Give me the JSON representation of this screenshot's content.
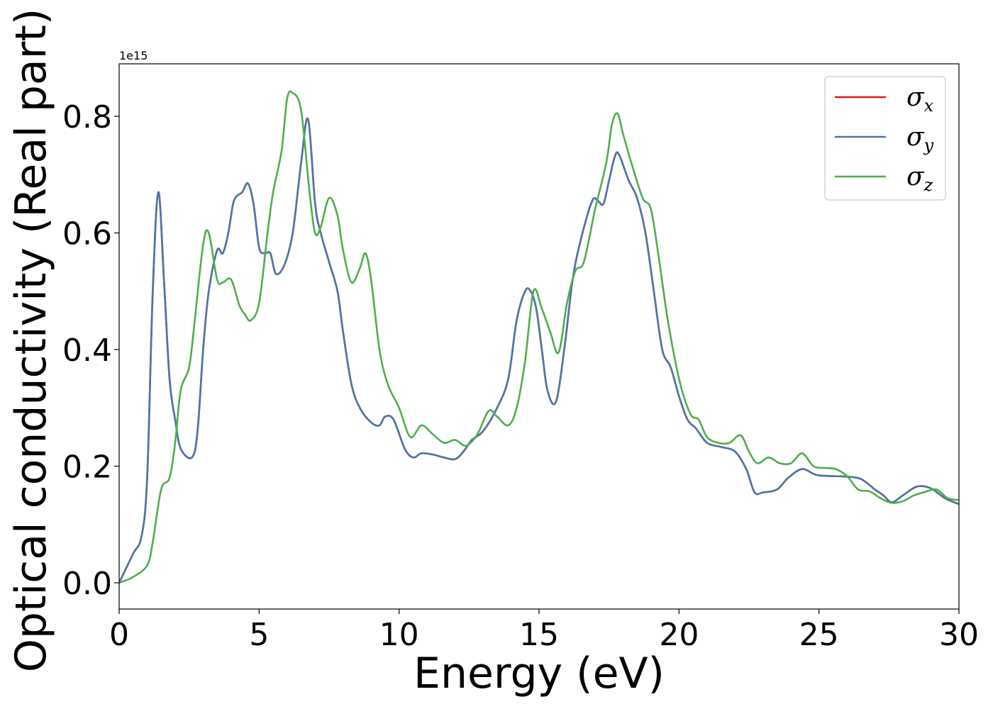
{
  "chart_data": {
    "type": "line",
    "xlabel": "Energy (eV)",
    "ylabel": "Optical conductivity (Real part)",
    "y_offset_label": "1e15",
    "xlim": [
      0,
      30
    ],
    "ylim": [
      -0.045,
      0.89
    ],
    "xticks": [
      0,
      5,
      10,
      15,
      20,
      25,
      30
    ],
    "yticks": [
      0.0,
      0.2,
      0.4,
      0.6,
      0.8
    ],
    "xtick_labels": [
      "0",
      "5",
      "10",
      "15",
      "20",
      "25",
      "30"
    ],
    "ytick_labels": [
      "0.0",
      "0.2",
      "0.4",
      "0.6",
      "0.8"
    ],
    "legend_position": "top-right",
    "grid": false,
    "series": [
      {
        "name": "σx",
        "symbol": "σ",
        "subscript": "x",
        "color": "#e41a1c",
        "x": [
          0,
          0.5,
          0.8,
          1.0,
          1.2,
          1.4,
          1.6,
          1.8,
          2.0,
          2.2,
          2.6,
          2.8,
          3.0,
          3.2,
          3.5,
          3.7,
          3.9,
          4.1,
          4.4,
          4.6,
          4.8,
          5.0,
          5.2,
          5.4,
          5.6,
          5.9,
          6.2,
          6.5,
          6.75,
          7.0,
          7.2,
          7.5,
          7.8,
          8.0,
          8.3,
          8.6,
          9.0,
          9.3,
          9.5,
          9.8,
          10.2,
          10.5,
          10.8,
          11.2,
          11.6,
          12.0,
          12.3,
          12.6,
          13.0,
          13.5,
          13.9,
          14.2,
          14.5,
          14.7,
          14.9,
          15.1,
          15.3,
          15.6,
          15.9,
          16.2,
          16.5,
          16.9,
          17.1,
          17.3,
          17.5,
          17.7,
          17.85,
          18.2,
          18.5,
          18.8,
          19.1,
          19.4,
          19.7,
          20.0,
          20.3,
          20.6,
          21.0,
          21.5,
          22.0,
          22.4,
          22.7,
          23.0,
          23.5,
          23.9,
          24.4,
          24.9,
          25.5,
          26.0,
          26.5,
          27.0,
          27.3,
          27.6,
          28.0,
          28.5,
          29.0,
          29.5,
          30.0
        ],
        "y": [
          0.0,
          0.05,
          0.08,
          0.18,
          0.5,
          0.67,
          0.52,
          0.35,
          0.28,
          0.23,
          0.215,
          0.26,
          0.4,
          0.5,
          0.57,
          0.565,
          0.6,
          0.655,
          0.67,
          0.685,
          0.65,
          0.575,
          0.565,
          0.565,
          0.53,
          0.545,
          0.6,
          0.72,
          0.795,
          0.65,
          0.6,
          0.55,
          0.5,
          0.43,
          0.34,
          0.3,
          0.275,
          0.27,
          0.285,
          0.28,
          0.23,
          0.215,
          0.222,
          0.22,
          0.215,
          0.212,
          0.225,
          0.245,
          0.26,
          0.3,
          0.35,
          0.45,
          0.5,
          0.5,
          0.47,
          0.4,
          0.33,
          0.31,
          0.4,
          0.52,
          0.59,
          0.655,
          0.655,
          0.65,
          0.69,
          0.73,
          0.735,
          0.69,
          0.66,
          0.6,
          0.5,
          0.4,
          0.37,
          0.32,
          0.28,
          0.265,
          0.24,
          0.233,
          0.225,
          0.195,
          0.155,
          0.155,
          0.16,
          0.18,
          0.195,
          0.185,
          0.183,
          0.182,
          0.178,
          0.16,
          0.15,
          0.138,
          0.15,
          0.165,
          0.162,
          0.145,
          0.135
        ]
      },
      {
        "name": "σy",
        "symbol": "σ",
        "subscript": "y",
        "color": "#4a78a8",
        "x": [
          0,
          0.5,
          0.8,
          1.0,
          1.2,
          1.4,
          1.6,
          1.8,
          2.0,
          2.2,
          2.6,
          2.8,
          3.0,
          3.2,
          3.5,
          3.7,
          3.9,
          4.1,
          4.4,
          4.6,
          4.8,
          5.0,
          5.2,
          5.4,
          5.6,
          5.9,
          6.2,
          6.5,
          6.75,
          7.0,
          7.2,
          7.5,
          7.8,
          8.0,
          8.3,
          8.6,
          9.0,
          9.3,
          9.5,
          9.8,
          10.2,
          10.5,
          10.8,
          11.2,
          11.6,
          12.0,
          12.3,
          12.6,
          13.0,
          13.5,
          13.9,
          14.2,
          14.5,
          14.7,
          14.9,
          15.1,
          15.3,
          15.6,
          15.9,
          16.2,
          16.5,
          16.9,
          17.1,
          17.3,
          17.5,
          17.7,
          17.85,
          18.2,
          18.5,
          18.8,
          19.1,
          19.4,
          19.7,
          20.0,
          20.3,
          20.6,
          21.0,
          21.5,
          22.0,
          22.4,
          22.7,
          23.0,
          23.5,
          23.9,
          24.4,
          24.9,
          25.5,
          26.0,
          26.5,
          27.0,
          27.3,
          27.6,
          28.0,
          28.5,
          29.0,
          29.5,
          30.0
        ],
        "y": [
          0.0,
          0.05,
          0.08,
          0.18,
          0.5,
          0.67,
          0.52,
          0.35,
          0.28,
          0.23,
          0.215,
          0.26,
          0.4,
          0.5,
          0.57,
          0.565,
          0.6,
          0.655,
          0.67,
          0.685,
          0.65,
          0.575,
          0.565,
          0.565,
          0.53,
          0.545,
          0.6,
          0.72,
          0.795,
          0.65,
          0.6,
          0.55,
          0.5,
          0.43,
          0.34,
          0.3,
          0.275,
          0.27,
          0.285,
          0.28,
          0.23,
          0.215,
          0.222,
          0.22,
          0.215,
          0.212,
          0.225,
          0.245,
          0.26,
          0.3,
          0.35,
          0.45,
          0.5,
          0.5,
          0.47,
          0.4,
          0.33,
          0.31,
          0.4,
          0.52,
          0.59,
          0.655,
          0.655,
          0.65,
          0.69,
          0.73,
          0.735,
          0.69,
          0.66,
          0.6,
          0.5,
          0.4,
          0.37,
          0.32,
          0.28,
          0.265,
          0.24,
          0.233,
          0.225,
          0.195,
          0.155,
          0.155,
          0.16,
          0.18,
          0.195,
          0.185,
          0.183,
          0.182,
          0.178,
          0.16,
          0.15,
          0.138,
          0.15,
          0.165,
          0.162,
          0.145,
          0.135
        ]
      },
      {
        "name": "σz",
        "symbol": "σ",
        "subscript": "z",
        "color": "#4daf4a",
        "x": [
          0,
          0.5,
          1.0,
          1.2,
          1.5,
          1.8,
          2.0,
          2.2,
          2.5,
          2.7,
          3.0,
          3.2,
          3.5,
          3.7,
          4.0,
          4.3,
          4.5,
          4.7,
          5.0,
          5.3,
          5.5,
          5.8,
          6.0,
          6.2,
          6.5,
          6.8,
          7.0,
          7.2,
          7.5,
          7.8,
          8.0,
          8.3,
          8.6,
          8.8,
          9.0,
          9.3,
          9.6,
          10.0,
          10.4,
          10.8,
          11.2,
          11.6,
          12.0,
          12.4,
          12.8,
          13.2,
          13.5,
          13.9,
          14.2,
          14.5,
          14.8,
          15.1,
          15.4,
          15.7,
          16.0,
          16.3,
          16.6,
          17.0,
          17.4,
          17.6,
          17.8,
          18.0,
          18.3,
          18.7,
          19.0,
          19.3,
          19.6,
          20.0,
          20.4,
          20.7,
          21.0,
          21.4,
          21.8,
          22.2,
          22.5,
          22.8,
          23.2,
          23.6,
          24.0,
          24.4,
          24.8,
          25.2,
          25.6,
          26.0,
          26.4,
          26.8,
          27.2,
          27.6,
          28.0,
          28.4,
          28.8,
          29.2,
          29.6,
          30.0
        ],
        "y": [
          0.0,
          0.01,
          0.03,
          0.07,
          0.16,
          0.18,
          0.24,
          0.33,
          0.37,
          0.45,
          0.58,
          0.6,
          0.52,
          0.515,
          0.52,
          0.475,
          0.46,
          0.45,
          0.48,
          0.6,
          0.67,
          0.74,
          0.83,
          0.84,
          0.81,
          0.67,
          0.6,
          0.61,
          0.66,
          0.63,
          0.57,
          0.515,
          0.54,
          0.565,
          0.52,
          0.4,
          0.34,
          0.3,
          0.25,
          0.27,
          0.255,
          0.24,
          0.245,
          0.235,
          0.255,
          0.295,
          0.285,
          0.27,
          0.3,
          0.38,
          0.5,
          0.47,
          0.43,
          0.395,
          0.48,
          0.535,
          0.55,
          0.64,
          0.72,
          0.785,
          0.805,
          0.77,
          0.72,
          0.66,
          0.64,
          0.55,
          0.45,
          0.35,
          0.29,
          0.28,
          0.25,
          0.24,
          0.24,
          0.253,
          0.225,
          0.205,
          0.215,
          0.205,
          0.205,
          0.222,
          0.2,
          0.197,
          0.195,
          0.183,
          0.16,
          0.157,
          0.145,
          0.137,
          0.14,
          0.15,
          0.156,
          0.16,
          0.145,
          0.142
        ]
      }
    ]
  }
}
